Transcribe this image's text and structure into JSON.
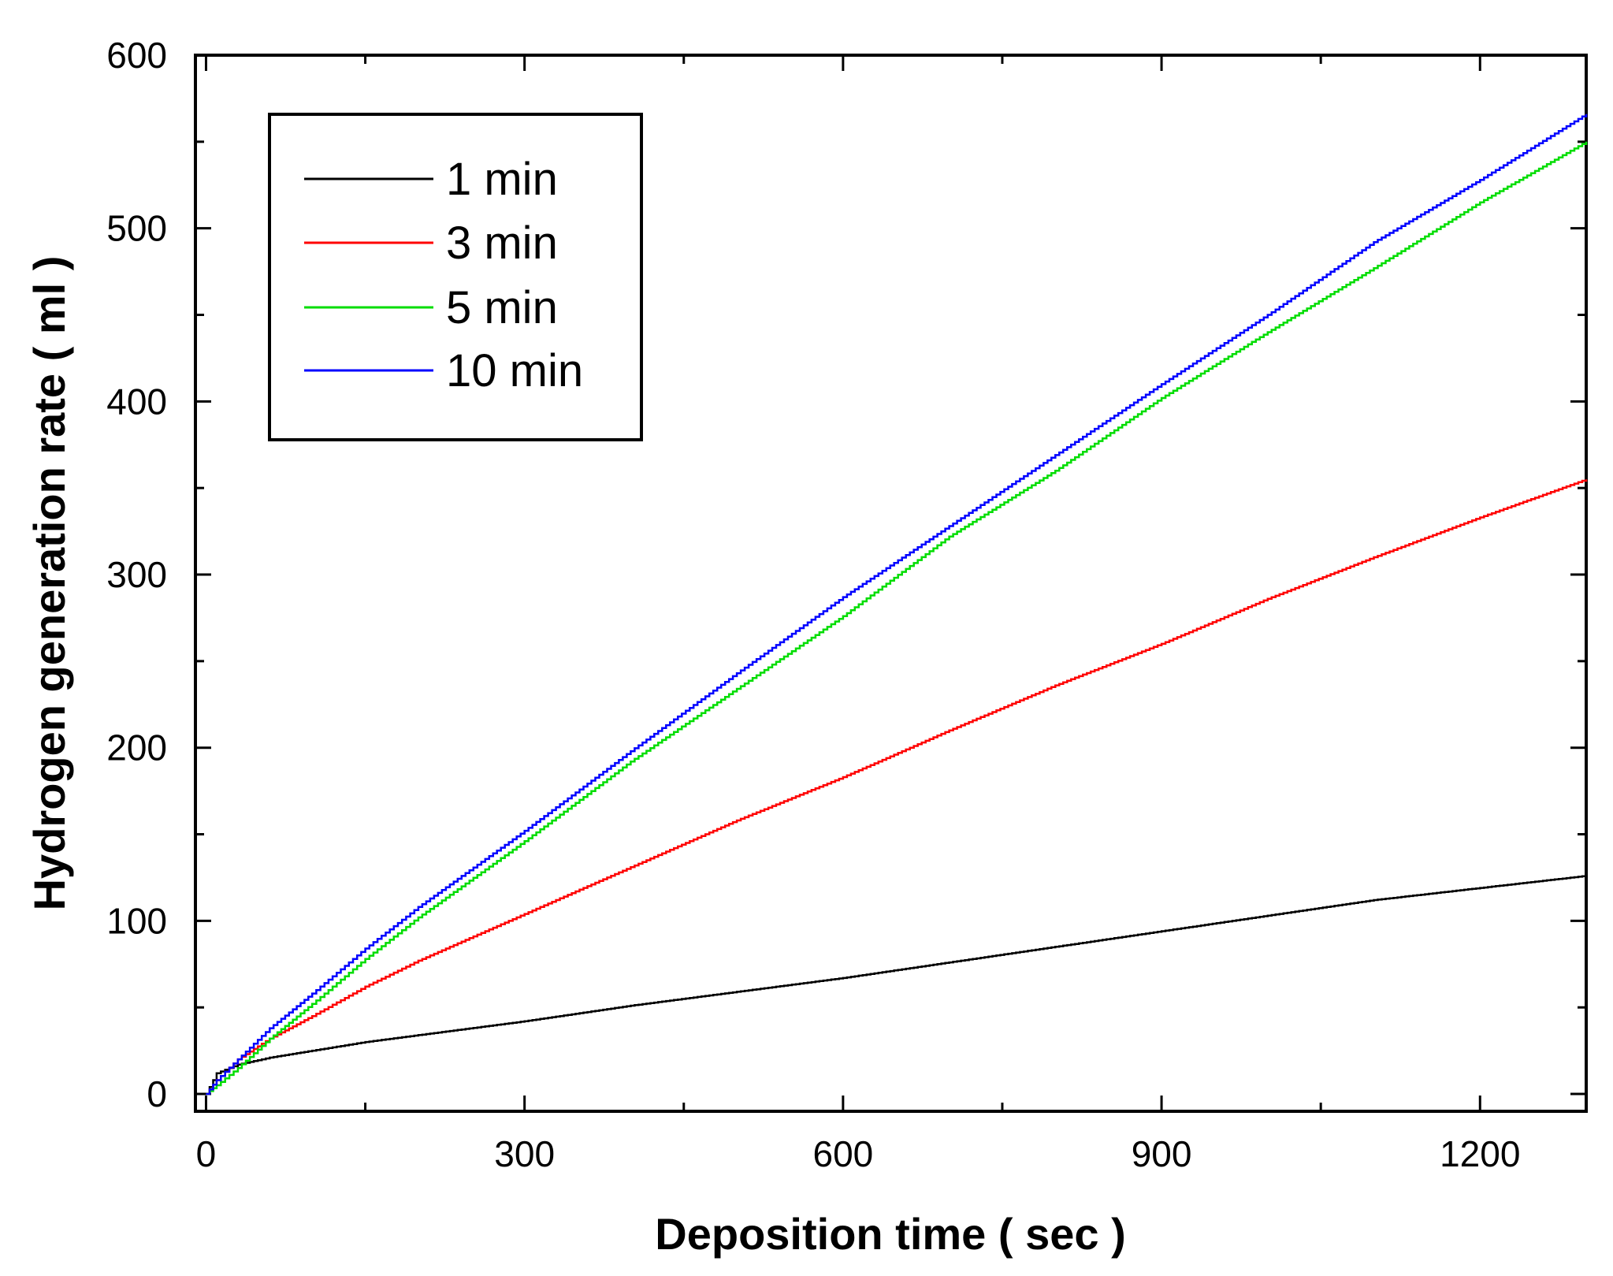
{
  "chart_data": {
    "type": "line",
    "xlabel": "Deposition time ( sec )",
    "ylabel": "Hydrogen generation rate ( ml )",
    "xlim": [
      -10,
      1300
    ],
    "ylim": [
      -10,
      600
    ],
    "xticks": [
      0,
      300,
      600,
      900,
      1200
    ],
    "yticks": [
      0,
      100,
      200,
      300,
      400,
      500,
      600
    ],
    "x_minor_step": 150,
    "y_minor_step": 50,
    "grid": false,
    "legend_position": "top-left",
    "series": [
      {
        "name": "1 min",
        "color": "#000000",
        "points": [
          [
            0,
            0
          ],
          [
            10,
            12
          ],
          [
            30,
            17
          ],
          [
            60,
            21
          ],
          [
            100,
            25
          ],
          [
            150,
            30
          ],
          [
            200,
            34
          ],
          [
            300,
            42
          ],
          [
            400,
            51
          ],
          [
            500,
            59
          ],
          [
            600,
            67
          ],
          [
            700,
            76
          ],
          [
            800,
            85
          ],
          [
            900,
            94
          ],
          [
            1000,
            103
          ],
          [
            1100,
            112
          ],
          [
            1200,
            119
          ],
          [
            1300,
            126
          ]
        ]
      },
      {
        "name": "3 min",
        "color": "#ff0000",
        "points": [
          [
            0,
            0
          ],
          [
            10,
            8
          ],
          [
            30,
            20
          ],
          [
            60,
            32
          ],
          [
            100,
            45
          ],
          [
            150,
            62
          ],
          [
            200,
            77
          ],
          [
            300,
            104
          ],
          [
            400,
            131
          ],
          [
            500,
            158
          ],
          [
            600,
            183
          ],
          [
            700,
            210
          ],
          [
            800,
            236
          ],
          [
            900,
            260
          ],
          [
            1000,
            286
          ],
          [
            1100,
            310
          ],
          [
            1200,
            333
          ],
          [
            1300,
            355
          ]
        ]
      },
      {
        "name": "5 min",
        "color": "#00dd00",
        "points": [
          [
            0,
            0
          ],
          [
            10,
            5
          ],
          [
            30,
            15
          ],
          [
            60,
            32
          ],
          [
            100,
            52
          ],
          [
            150,
            78
          ],
          [
            200,
            102
          ],
          [
            300,
            146
          ],
          [
            400,
            192
          ],
          [
            500,
            234
          ],
          [
            600,
            276
          ],
          [
            700,
            322
          ],
          [
            800,
            360
          ],
          [
            900,
            402
          ],
          [
            1000,
            440
          ],
          [
            1100,
            477
          ],
          [
            1200,
            515
          ],
          [
            1300,
            550
          ]
        ]
      },
      {
        "name": "10 min",
        "color": "#0000ff",
        "points": [
          [
            0,
            0
          ],
          [
            10,
            8
          ],
          [
            30,
            20
          ],
          [
            60,
            38
          ],
          [
            100,
            58
          ],
          [
            150,
            84
          ],
          [
            200,
            108
          ],
          [
            300,
            152
          ],
          [
            400,
            198
          ],
          [
            500,
            243
          ],
          [
            600,
            287
          ],
          [
            700,
            328
          ],
          [
            800,
            369
          ],
          [
            900,
            410
          ],
          [
            1000,
            450
          ],
          [
            1100,
            492
          ],
          [
            1200,
            528
          ],
          [
            1300,
            566
          ]
        ]
      }
    ]
  }
}
